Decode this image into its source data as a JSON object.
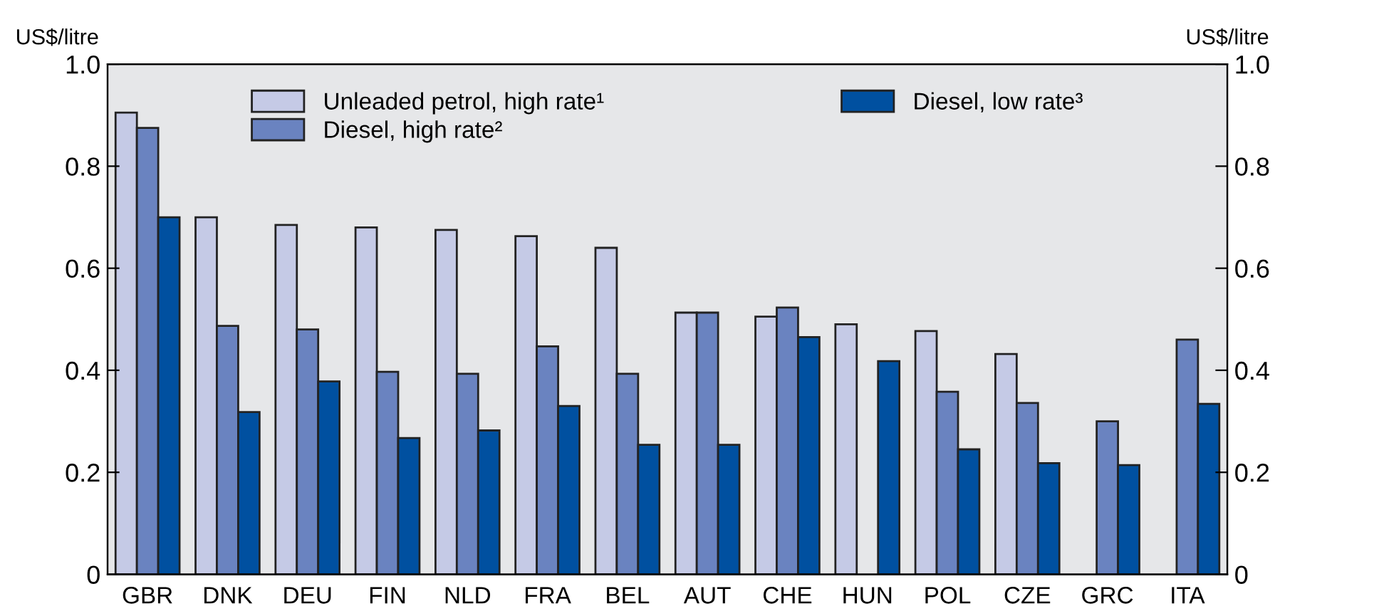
{
  "chart_data": {
    "type": "bar",
    "ylabel": "US$/litre",
    "y2label": "US$/litre",
    "categories": [
      "GBR",
      "DNK",
      "DEU",
      "FIN",
      "NLD",
      "FRA",
      "BEL",
      "AUT",
      "CHE",
      "HUN",
      "POL",
      "CZE",
      "GRC",
      "ITA"
    ],
    "series": [
      {
        "name": "Unleaded petrol, high rate¹",
        "color": "#c5cae6",
        "values": [
          0.905,
          0.7,
          0.685,
          0.68,
          0.675,
          0.663,
          0.64,
          0.513,
          0.505,
          0.49,
          0.477,
          0.432,
          null,
          null
        ]
      },
      {
        "name": "Diesel, high rate²",
        "color": "#6a83c0",
        "values": [
          0.875,
          0.487,
          0.48,
          0.397,
          0.393,
          0.447,
          0.393,
          0.513,
          0.523,
          null,
          0.358,
          0.336,
          0.3,
          0.46
        ]
      },
      {
        "name": "Diesel, low rate³",
        "color": "#0050a0",
        "values": [
          0.7,
          0.318,
          0.378,
          0.267,
          0.282,
          0.33,
          0.254,
          0.254,
          0.465,
          0.418,
          0.245,
          0.218,
          0.214,
          0.334
        ]
      }
    ],
    "ylim": [
      0,
      1.0
    ],
    "yticks": [
      0,
      0.2,
      0.4,
      0.6,
      0.8,
      {
        "value": 1.0,
        "label": "1.0"
      }
    ],
    "y2lim": [
      0,
      1.0
    ],
    "y2ticks": [
      0,
      0.2,
      0.4,
      0.6,
      0.8,
      {
        "value": 1.0,
        "label": "1.0"
      }
    ],
    "grid": false,
    "legend": "top"
  }
}
